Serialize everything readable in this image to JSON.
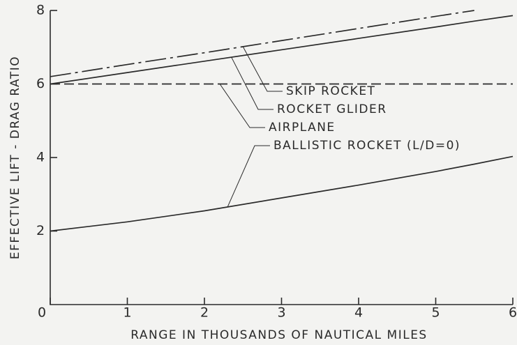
{
  "chart_data": {
    "type": "line",
    "x_label": "RANGE IN THOUSANDS OF NAUTICAL MILES",
    "y_label": "EFFECTIVE LIFT - DRAG RATIO",
    "x": [
      0,
      1,
      2,
      3,
      4,
      5,
      5.5,
      6
    ],
    "series": [
      {
        "name": "SKIP ROCKET",
        "color": "#2a2a2a",
        "style": "dashdot",
        "values": [
          6.2,
          6.53,
          6.85,
          7.18,
          7.51,
          7.84,
          8.0,
          null
        ]
      },
      {
        "name": "ROCKET GLIDER",
        "color": "#2a2a2a",
        "style": "solid",
        "values": [
          6.0,
          6.31,
          6.62,
          6.93,
          7.24,
          7.55,
          7.71,
          7.86
        ]
      },
      {
        "name": "AIRPLANE",
        "color": "#2a2a2a",
        "style": "dashed",
        "values": [
          6,
          6,
          6,
          6,
          6,
          6,
          6,
          6
        ]
      },
      {
        "name": "BALLISTIC ROCKET (L/D=0)",
        "color": "#2a2a2a",
        "style": "solid",
        "values": [
          2.0,
          2.25,
          2.55,
          2.9,
          3.25,
          3.62,
          3.82,
          4.03
        ]
      }
    ],
    "xlim": [
      0,
      6
    ],
    "ylim": [
      0,
      8
    ],
    "xticks": [
      0,
      1,
      2,
      3,
      4,
      5,
      6
    ],
    "yticks": [
      2,
      4,
      6,
      8
    ],
    "grid": false
  }
}
